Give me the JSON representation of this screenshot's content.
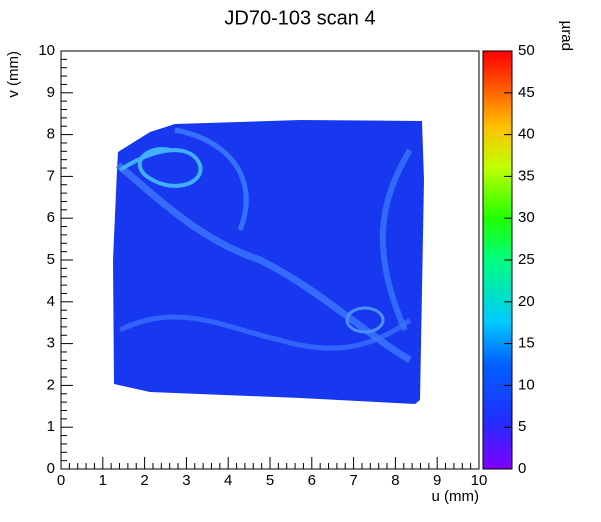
{
  "chart_data": {
    "type": "heatmap",
    "title": "JD70-103 scan 4",
    "x_label": "u (mm)",
    "y_label": "v (mm)",
    "colorbar_label": "µrad",
    "xlim": [
      0,
      10
    ],
    "ylim": [
      0,
      10
    ],
    "zlim": [
      0,
      50
    ],
    "xticks": [
      0,
      1,
      2,
      3,
      4,
      5,
      6,
      7,
      8,
      9,
      10
    ],
    "yticks": [
      0,
      1,
      2,
      3,
      4,
      5,
      6,
      7,
      8,
      9,
      10
    ],
    "zticks": [
      0,
      5,
      10,
      15,
      20,
      25,
      30,
      35,
      40,
      45,
      50
    ]
  }
}
